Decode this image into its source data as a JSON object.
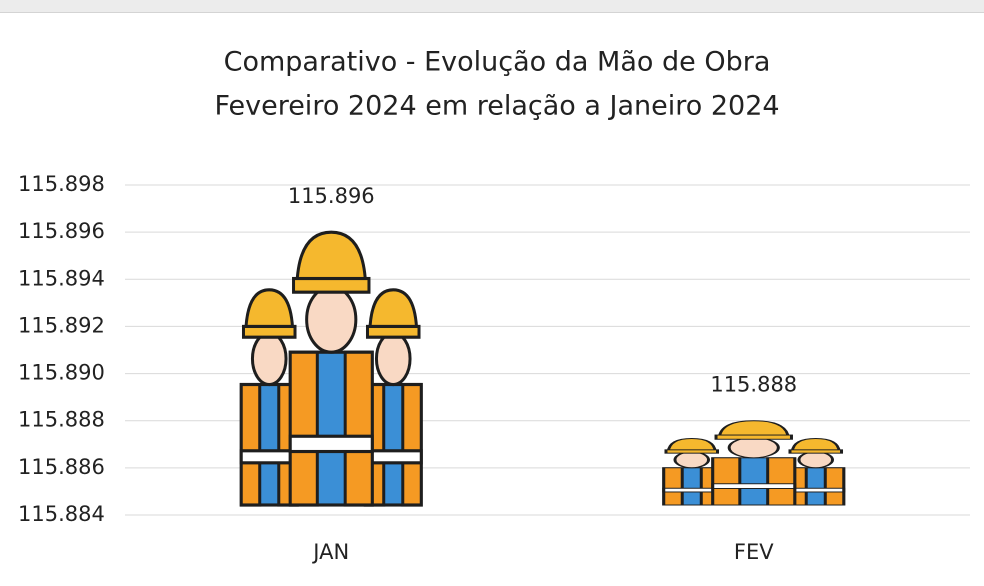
{
  "chart_data": {
    "type": "pictograph",
    "title": [
      "Comparativo - Evolução da Mão de Obra",
      "Fevereiro 2024 em relação a Janeiro 2024"
    ],
    "categories": [
      "JAN",
      "FEV"
    ],
    "values": [
      115896,
      115888
    ],
    "value_labels": [
      "115.896",
      "115.888"
    ],
    "ylim": [
      115884,
      115898
    ],
    "yticks": [
      {
        "value": 115884,
        "label": "115.884"
      },
      {
        "value": 115886,
        "label": "115.886"
      },
      {
        "value": 115888,
        "label": "115.888"
      },
      {
        "value": 115890,
        "label": "115.890"
      },
      {
        "value": 115892,
        "label": "115.892"
      },
      {
        "value": 115894,
        "label": "115.894"
      },
      {
        "value": 115896,
        "label": "115.896"
      },
      {
        "value": 115898,
        "label": "115.898"
      }
    ],
    "grid": true
  }
}
